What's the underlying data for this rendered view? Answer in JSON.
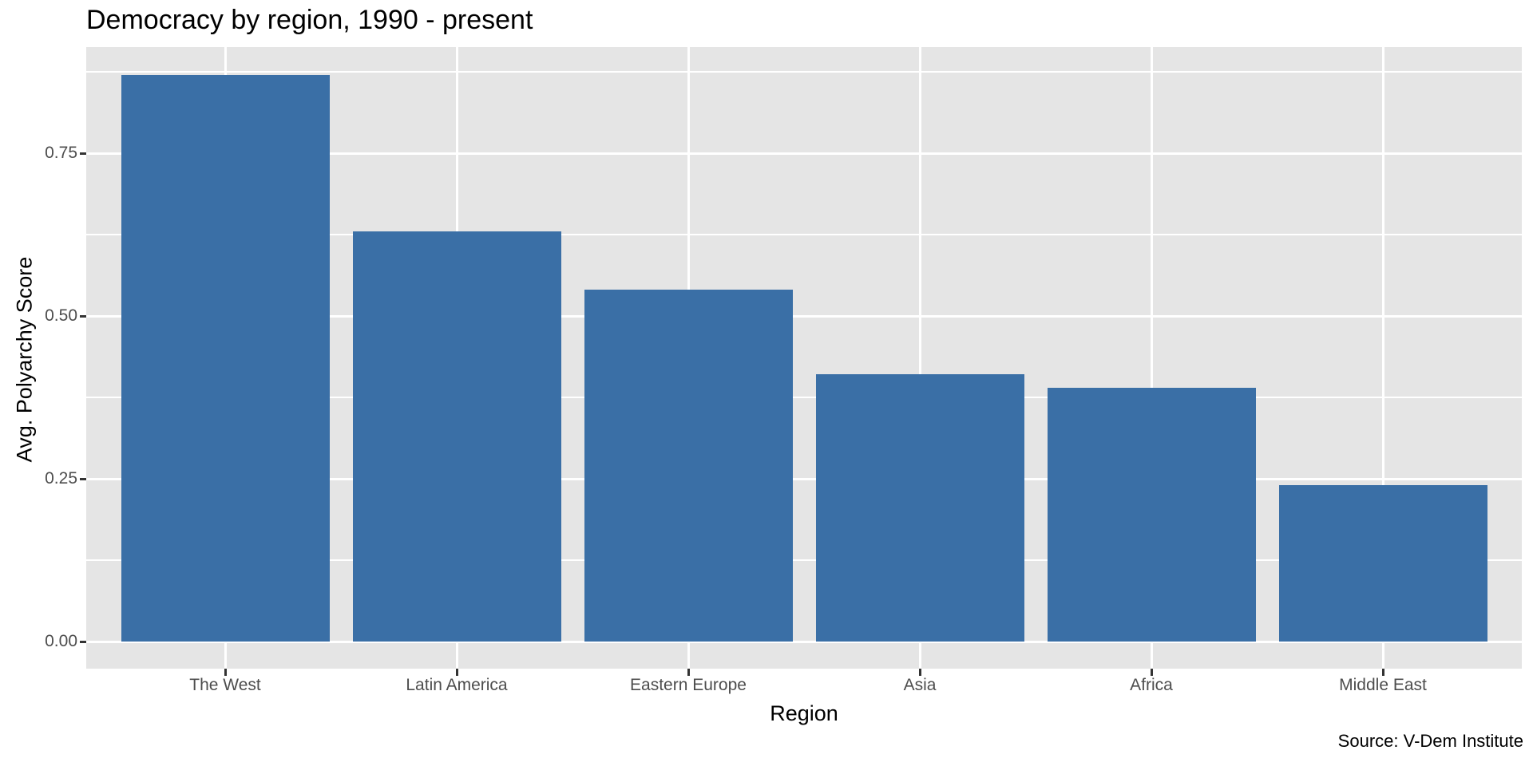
{
  "chart_data": {
    "type": "bar",
    "title": "Democracy by region, 1990 - present",
    "xlabel": "Region",
    "ylabel": "Avg. Polyarchy Score",
    "caption": "Source: V-Dem Institute",
    "categories": [
      "The West",
      "Latin America",
      "Eastern Europe",
      "Asia",
      "Africa",
      "Middle East"
    ],
    "values": [
      0.87,
      0.63,
      0.54,
      0.41,
      0.39,
      0.24
    ],
    "yticks": [
      0.0,
      0.25,
      0.5,
      0.75
    ],
    "ytick_labels": [
      "0.00",
      "0.25",
      "0.50",
      "0.75"
    ],
    "minor_yticks": [
      0.125,
      0.375,
      0.625,
      0.875
    ],
    "ylim": [
      -0.04,
      0.91
    ],
    "grid": true,
    "legend_position": "none",
    "colors": {
      "bar": "#3A6FA6",
      "panel_background": "#E5E5E5",
      "gridline": "#FFFFFF",
      "tick_text": "#4D4D4D",
      "tick_mark": "#333333",
      "title_text": "#000000"
    }
  }
}
